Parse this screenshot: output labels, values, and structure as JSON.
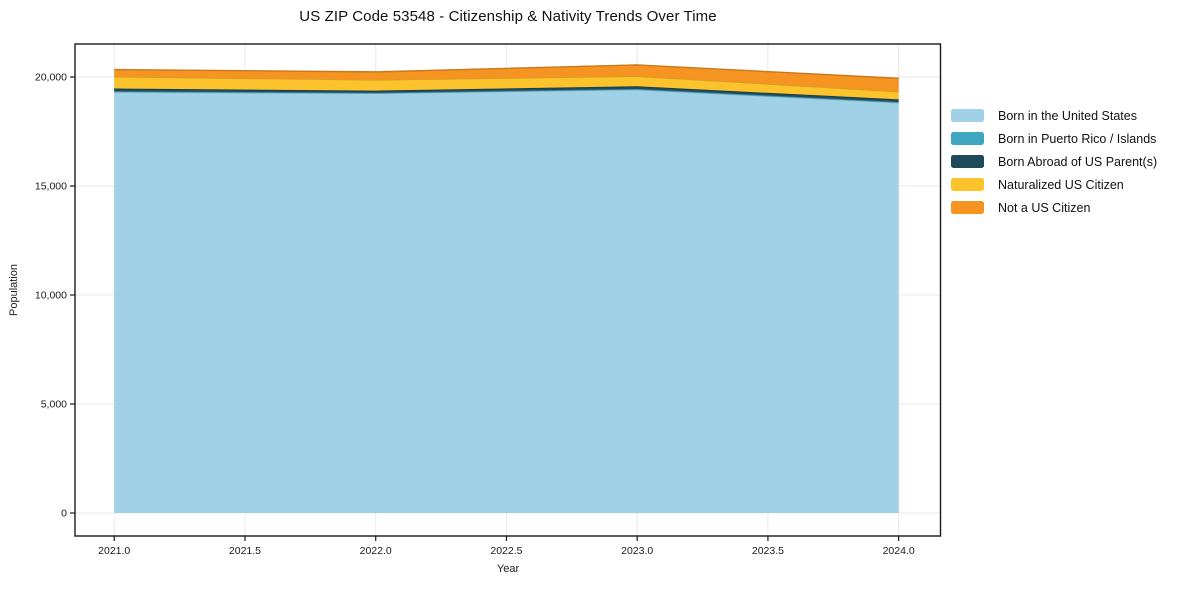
{
  "chart_data": {
    "type": "area",
    "stacked": true,
    "title": "US ZIP Code 53548 - Citizenship & Nativity Trends Over Time",
    "xlabel": "Year",
    "ylabel": "Population",
    "x": [
      2021,
      2022,
      2023,
      2024
    ],
    "series": [
      {
        "name": "Born in the United States",
        "color": "#a0d1e7",
        "values": [
          19310,
          19250,
          19420,
          18820
        ]
      },
      {
        "name": "Born in Puerto Rico / Islands",
        "color": "#3ea6c0",
        "values": [
          40,
          30,
          35,
          35
        ]
      },
      {
        "name": "Born Abroad of US Parent(s)",
        "color": "#1f4a5c",
        "values": [
          120,
          95,
          120,
          120
        ]
      },
      {
        "name": "Naturalized US Citizen",
        "color": "#fcc32d",
        "values": [
          540,
          490,
          460,
          350
        ]
      },
      {
        "name": "Not a US Citizen",
        "color": "#f59421",
        "values": [
          330,
          370,
          520,
          615
        ]
      }
    ],
    "xlim": [
      2020.85,
      2024.16
    ],
    "ylim": [
      -1055,
      21514
    ],
    "xticks": [
      {
        "v": 2021.0,
        "label": "2021.0"
      },
      {
        "v": 2021.5,
        "label": "2021.5"
      },
      {
        "v": 2022.0,
        "label": "2022.0"
      },
      {
        "v": 2022.5,
        "label": "2022.5"
      },
      {
        "v": 2023.0,
        "label": "2023.0"
      },
      {
        "v": 2023.5,
        "label": "2023.5"
      },
      {
        "v": 2024.0,
        "label": "2024.0"
      }
    ],
    "yticks": [
      {
        "v": 0,
        "label": "0"
      },
      {
        "v": 5000,
        "label": "5,000"
      },
      {
        "v": 10000,
        "label": "10,000"
      },
      {
        "v": 15000,
        "label": "15,000"
      },
      {
        "v": 20000,
        "label": "20,000"
      }
    ],
    "grid": true,
    "legend_position": "right-outside",
    "colors": {
      "grid": "#e9e9e9",
      "spine": "#1a1a1a",
      "tick_text": "#1a1a1a",
      "title_text": "#111111"
    }
  }
}
